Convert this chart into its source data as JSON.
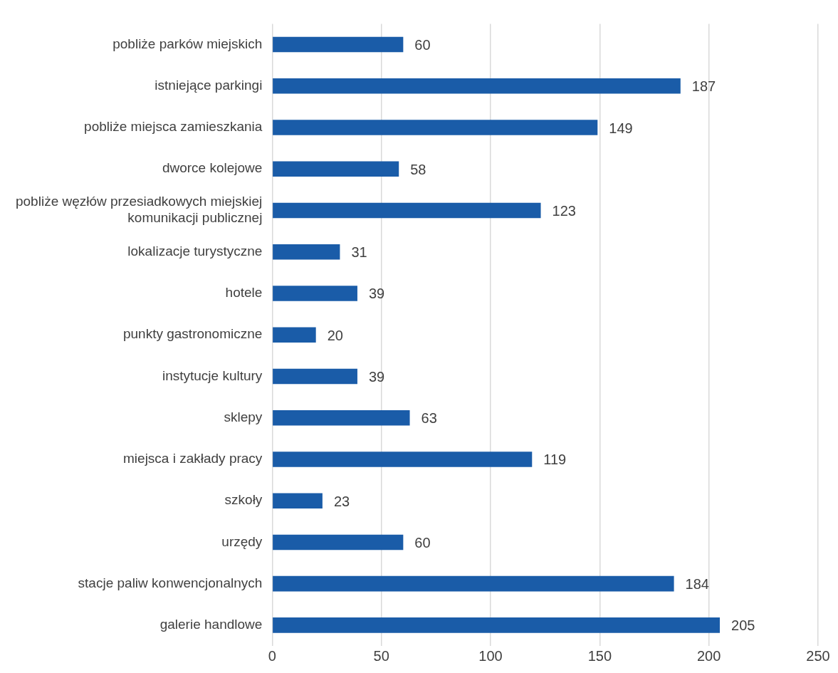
{
  "chart_data": {
    "type": "bar",
    "orientation": "horizontal",
    "categories": [
      "pobliże parków miejskich",
      "istniejące parkingi",
      "pobliże miejsca zamieszkania",
      "dworce kolejowe",
      "pobliże węzłów przesiadkowych miejskiej komunikacji publicznej",
      "lokalizacje turystyczne",
      "hotele",
      "punkty gastronomiczne",
      "instytucje kultury",
      "sklepy",
      "miejsca i zakłady pracy",
      "szkoły",
      "urzędy",
      "stacje paliw konwencjonalnych",
      "galerie handlowe"
    ],
    "values": [
      60,
      187,
      149,
      58,
      123,
      31,
      39,
      20,
      39,
      63,
      119,
      23,
      60,
      184,
      205
    ],
    "color": "#1a5ca8",
    "xlim": [
      0,
      250
    ],
    "xticks": [
      0,
      50,
      100,
      150,
      200,
      250
    ],
    "grid": "x",
    "data_labels": true,
    "legend": false
  }
}
